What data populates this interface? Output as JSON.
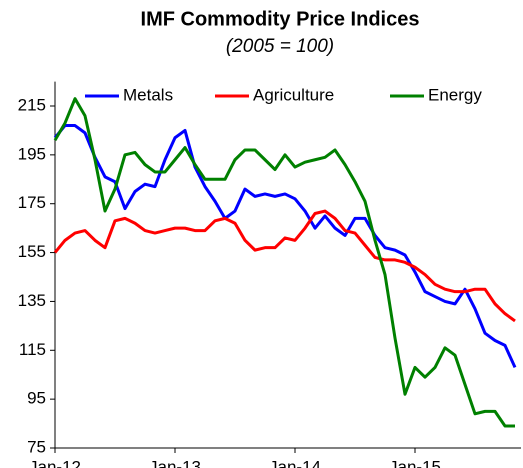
{
  "chart_data": {
    "type": "line",
    "title": "IMF Commodity Price Indices",
    "subtitle": "(2005 = 100)",
    "categories": [
      "Jan-12",
      null,
      null,
      null,
      null,
      null,
      null,
      null,
      null,
      null,
      null,
      null,
      "Jan-13",
      null,
      null,
      null,
      null,
      null,
      null,
      null,
      null,
      null,
      null,
      null,
      "Jan-14",
      null,
      null,
      null,
      null,
      null,
      null,
      null,
      null,
      null,
      null,
      null,
      "Jan-15",
      null,
      null,
      null,
      null,
      null,
      null,
      null,
      null,
      null,
      null
    ],
    "series": [
      {
        "name": "Metals",
        "color": "#0000ff",
        "values": [
          202,
          207,
          207,
          204,
          194,
          186,
          184,
          173,
          180,
          183,
          182,
          193,
          202,
          205,
          190,
          182,
          176,
          169,
          172,
          181,
          178,
          179,
          178,
          179,
          177,
          172,
          165,
          170,
          165,
          162,
          169,
          169,
          162,
          157,
          156,
          154,
          147,
          139,
          137,
          135,
          134,
          140,
          132,
          122,
          119,
          117,
          108
        ]
      },
      {
        "name": "Agriculture",
        "color": "#ff0000",
        "values": [
          155,
          160,
          163,
          164,
          160,
          157,
          168,
          169,
          167,
          164,
          163,
          164,
          165,
          165,
          164,
          164,
          168,
          169,
          167,
          160,
          156,
          157,
          157,
          161,
          160,
          165,
          171,
          172,
          169,
          164,
          163,
          158,
          153,
          152,
          152,
          151,
          149,
          146,
          142,
          140,
          139,
          139,
          140,
          140,
          134,
          130,
          127
        ]
      },
      {
        "name": "Energy",
        "color": "#008000",
        "values": [
          201,
          208,
          218,
          211,
          193,
          172,
          181,
          195,
          196,
          191,
          188,
          188,
          193,
          198,
          191,
          185,
          185,
          185,
          193,
          197,
          197,
          193,
          189,
          195,
          190,
          192,
          193,
          194,
          197,
          191,
          184,
          176,
          160,
          146,
          120,
          97,
          108,
          104,
          108,
          116,
          113,
          101,
          89,
          90,
          90,
          84,
          84
        ]
      }
    ],
    "ylim": [
      75,
      225
    ],
    "yticks": [
      75,
      95,
      115,
      135,
      155,
      175,
      195,
      215
    ],
    "legend": "top"
  }
}
